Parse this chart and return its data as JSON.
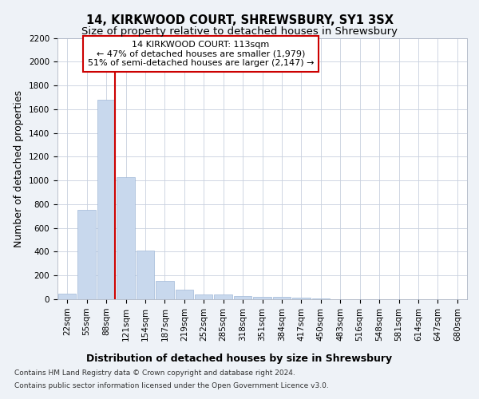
{
  "title_line1": "14, KIRKWOOD COURT, SHREWSBURY, SY1 3SX",
  "title_line2": "Size of property relative to detached houses in Shrewsbury",
  "xlabel": "Distribution of detached houses by size in Shrewsbury",
  "ylabel": "Number of detached properties",
  "categories": [
    "22sqm",
    "55sqm",
    "88sqm",
    "121sqm",
    "154sqm",
    "187sqm",
    "219sqm",
    "252sqm",
    "285sqm",
    "318sqm",
    "351sqm",
    "384sqm",
    "417sqm",
    "450sqm",
    "483sqm",
    "516sqm",
    "548sqm",
    "581sqm",
    "614sqm",
    "647sqm",
    "680sqm"
  ],
  "values": [
    50,
    750,
    1680,
    1030,
    410,
    155,
    80,
    42,
    38,
    25,
    22,
    18,
    15,
    5,
    3,
    2,
    1,
    1,
    1,
    0,
    0
  ],
  "bar_color": "#c8d8ed",
  "bar_edge_color": "#a0b8d8",
  "vline_color": "#cc0000",
  "annotation_text": "14 KIRKWOOD COURT: 113sqm\n← 47% of detached houses are smaller (1,979)\n51% of semi-detached houses are larger (2,147) →",
  "annotation_box_color": "#cc0000",
  "ylim": [
    0,
    2200
  ],
  "yticks": [
    0,
    200,
    400,
    600,
    800,
    1000,
    1200,
    1400,
    1600,
    1800,
    2000,
    2200
  ],
  "bg_color": "#eef2f7",
  "plot_bg_color": "#ffffff",
  "grid_color": "#c8d0de",
  "footer_line1": "Contains HM Land Registry data © Crown copyright and database right 2024.",
  "footer_line2": "Contains public sector information licensed under the Open Government Licence v3.0.",
  "title_fontsize": 10.5,
  "subtitle_fontsize": 9.5,
  "tick_fontsize": 7.5,
  "label_fontsize": 9,
  "footer_fontsize": 6.5
}
